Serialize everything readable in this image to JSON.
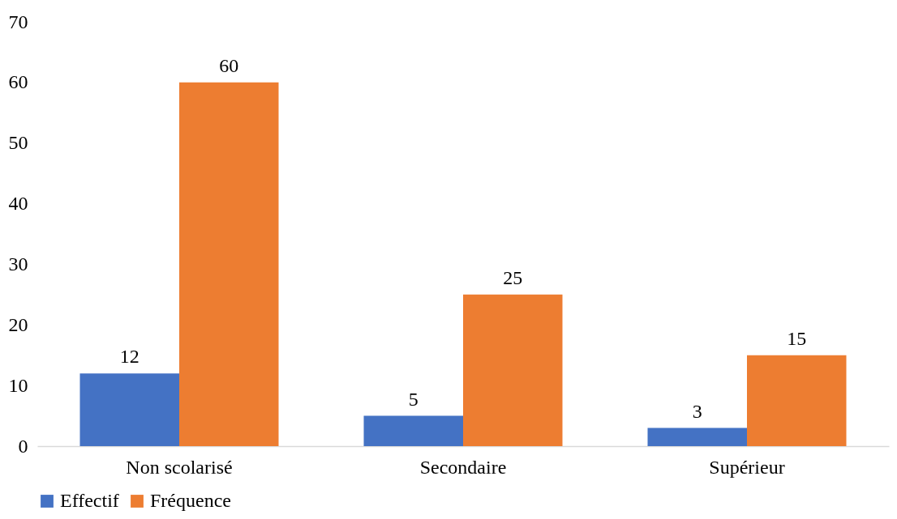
{
  "chart_data": {
    "type": "bar",
    "categories": [
      "Non scolarisé",
      "Secondaire",
      "Supérieur"
    ],
    "series": [
      {
        "name": "Effectif",
        "color": "#4472c4",
        "values": [
          12,
          5,
          3
        ]
      },
      {
        "name": "Fréquence",
        "color": "#ed7d31",
        "values": [
          60,
          25,
          15
        ]
      }
    ],
    "ylim": [
      0,
      70
    ],
    "yticks": [
      0,
      10,
      20,
      30,
      40,
      50,
      60,
      70
    ],
    "data_labels": true,
    "legend": "bottom",
    "grid": false
  }
}
